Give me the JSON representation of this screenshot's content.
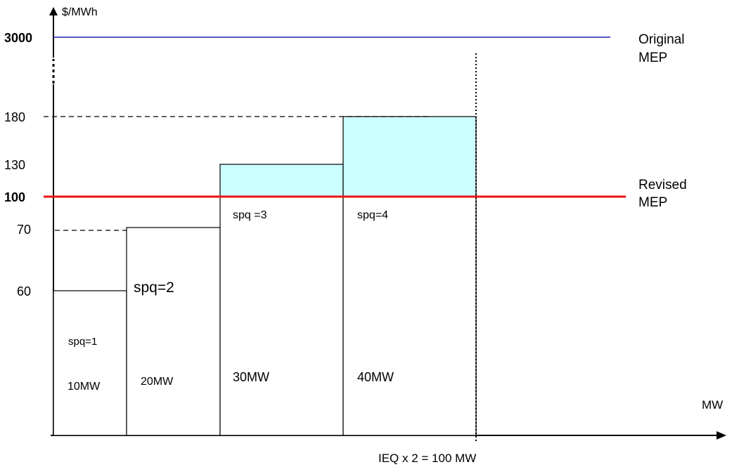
{
  "axes": {
    "y_unit": "$/MWh",
    "x_unit": "MW"
  },
  "y_ticks": {
    "p3000": "3000",
    "p180": "180",
    "p130": "130",
    "p100": "100",
    "p70": "70",
    "p60": "60"
  },
  "lines": {
    "original_mep_line1": "Original",
    "original_mep_line2": "MEP",
    "revised_mep_line1": "Revised",
    "revised_mep_line2": "MEP",
    "ieq_label": "IEQ x 2 = 100 MW"
  },
  "steps": [
    {
      "spq_label": "spq=1",
      "mw_label": "10MW",
      "price": 60,
      "mw": 10
    },
    {
      "spq_label": "spq=2",
      "mw_label": "20MW",
      "price": 70,
      "mw": 20
    },
    {
      "spq_label": "spq =3",
      "mw_label": "30MW",
      "price": 130,
      "mw": 30
    },
    {
      "spq_label": "spq=4",
      "mw_label": "40MW",
      "price": 180,
      "mw": 40
    }
  ],
  "colors": {
    "original_mep": "#1f1fb4",
    "revised_mep": "#ee1111",
    "above_mep_fill": "#ccffff"
  }
}
